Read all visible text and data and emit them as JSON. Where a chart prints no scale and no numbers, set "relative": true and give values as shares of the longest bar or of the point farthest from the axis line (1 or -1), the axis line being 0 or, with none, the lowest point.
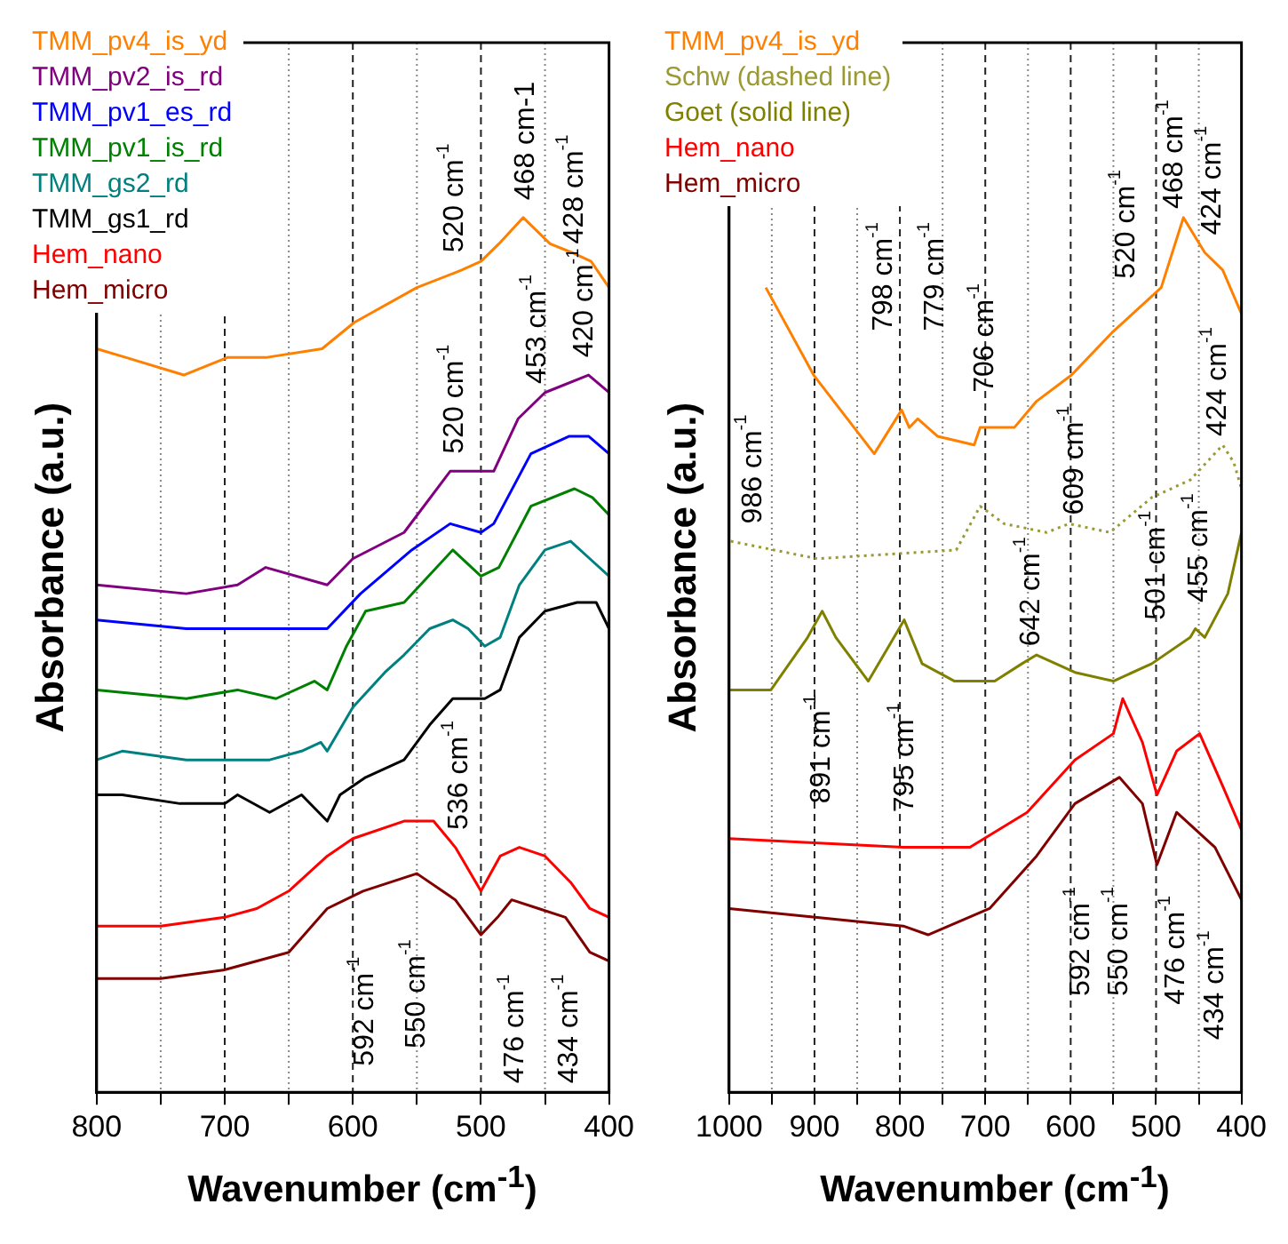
{
  "chart_data": [
    {
      "type": "line",
      "relative": true,
      "xlabel": "Wavenumber (cm$^{-1}$)",
      "ylabel": "Absorbance (a.u.)",
      "xlim": [
        800,
        400
      ],
      "xticks": [
        800,
        {
          "value": 750,
          "label": null
        },
        700,
        {
          "value": 650,
          "label": null
        },
        600,
        {
          "value": 550,
          "label": null
        },
        500,
        {
          "value": 450,
          "label": null
        },
        400
      ],
      "grid": "x",
      "legend": "top left",
      "series": [
        {
          "name": "TMM_pv4_is_yd",
          "color": "#ff8000",
          "x": [
            800,
            777,
            732,
            698,
            668,
            624,
            599,
            550,
            515,
            500,
            486,
            467,
            446,
            429,
            414,
            400
          ],
          "values": [
            0.85,
            0.84,
            0.82,
            0.84,
            0.84,
            0.85,
            0.88,
            0.92,
            0.94,
            0.95,
            0.97,
            1.0,
            0.97,
            0.96,
            0.95,
            0.92
          ]
        },
        {
          "name": "TMM_pv2_is_rd",
          "color": "#800080",
          "x": [
            800,
            730,
            690,
            668,
            620,
            600,
            560,
            524,
            500,
            490,
            471,
            450,
            416,
            400
          ],
          "values": [
            0.58,
            0.57,
            0.58,
            0.6,
            0.58,
            0.61,
            0.64,
            0.71,
            0.71,
            0.71,
            0.77,
            0.8,
            0.82,
            0.8
          ]
        },
        {
          "name": "TMM_pv1_es_rd",
          "color": "#0000ff",
          "x": [
            800,
            730,
            690,
            640,
            620,
            594,
            554,
            524,
            500,
            490,
            461,
            431,
            416,
            400
          ],
          "values": [
            0.54,
            0.53,
            0.53,
            0.53,
            0.53,
            0.57,
            0.62,
            0.65,
            0.64,
            0.65,
            0.73,
            0.75,
            0.75,
            0.73
          ]
        },
        {
          "name": "TMM_pv1_is_rd",
          "color": "#008000",
          "x": [
            800,
            730,
            690,
            660,
            630,
            620,
            605,
            590,
            560,
            522,
            500,
            486,
            461,
            427,
            413,
            400
          ],
          "values": [
            0.46,
            0.45,
            0.46,
            0.45,
            0.47,
            0.46,
            0.51,
            0.55,
            0.56,
            0.62,
            0.59,
            0.6,
            0.67,
            0.69,
            0.68,
            0.66
          ]
        },
        {
          "name": "TMM_gs2_rd",
          "color": "#008080",
          "x": [
            800,
            780,
            730,
            690,
            665,
            640,
            625,
            620,
            600,
            575,
            560,
            540,
            522,
            510,
            497,
            485,
            470,
            450,
            430,
            415,
            400
          ],
          "values": [
            0.38,
            0.39,
            0.38,
            0.38,
            0.38,
            0.39,
            0.4,
            0.39,
            0.44,
            0.48,
            0.5,
            0.53,
            0.54,
            0.53,
            0.51,
            0.52,
            0.58,
            0.62,
            0.63,
            0.61,
            0.59
          ]
        },
        {
          "name": "TMM_gs1_rd",
          "color": "#000000",
          "x": [
            800,
            780,
            735,
            700,
            690,
            665,
            640,
            620,
            610,
            590,
            560,
            540,
            522,
            505,
            497,
            485,
            470,
            450,
            425,
            410,
            400
          ],
          "values": [
            0.34,
            0.34,
            0.33,
            0.33,
            0.34,
            0.32,
            0.34,
            0.31,
            0.34,
            0.36,
            0.38,
            0.42,
            0.45,
            0.45,
            0.45,
            0.46,
            0.52,
            0.55,
            0.56,
            0.56,
            0.53
          ]
        },
        {
          "name": "Hem_nano",
          "color": "#ff0000",
          "x": [
            800,
            750,
            700,
            675,
            650,
            620,
            600,
            560,
            537,
            520,
            500,
            485,
            470,
            450,
            430,
            415,
            400
          ],
          "values": [
            0.19,
            0.19,
            0.2,
            0.21,
            0.23,
            0.27,
            0.29,
            0.31,
            0.31,
            0.28,
            0.23,
            0.27,
            0.28,
            0.27,
            0.24,
            0.21,
            0.2
          ]
        },
        {
          "name": "Hem_micro",
          "color": "#800000",
          "x": [
            800,
            750,
            700,
            650,
            620,
            592,
            550,
            520,
            500,
            487,
            476,
            455,
            434,
            415,
            400
          ],
          "values": [
            0.13,
            0.13,
            0.14,
            0.16,
            0.21,
            0.23,
            0.25,
            0.22,
            0.18,
            0.2,
            0.22,
            0.21,
            0.2,
            0.16,
            0.15
          ]
        }
      ],
      "annotations": [
        "520 cm$^{-1}$",
        "468 cm-1",
        "428 cm$^{-1}$",
        "520 cm$^{-1}$",
        "453 cm$^{-1}$",
        "420 cm$^{-1}$",
        "536 cm$^{-1}$",
        "592 cm$^{-1}$",
        "550 cm$^{-1}$",
        "476 cm$^{-1}$",
        "434 cm$^{-1}$"
      ]
    },
    {
      "type": "line",
      "relative": true,
      "xlabel": "Wavenumber (cm$^{-1}$)",
      "ylabel": "Absorbance (a.u.)",
      "xlim": [
        1000,
        400
      ],
      "xticks": [
        1000,
        {
          "value": 950,
          "label": null
        },
        900,
        {
          "value": 850,
          "label": null
        },
        800,
        {
          "value": 750,
          "label": null
        },
        700,
        {
          "value": 650,
          "label": null
        },
        600,
        {
          "value": 550,
          "label": null
        },
        500,
        {
          "value": 450,
          "label": null
        },
        400
      ],
      "grid": "x",
      "legend": "top left",
      "series": [
        {
          "name": "TMM_pv4_is_yd",
          "color": "#ff8000",
          "x": [
            957,
            901,
            830,
            798,
            789,
            779,
            756,
            713,
            706,
            666,
            640,
            599,
            550,
            505,
            494,
            468,
            443,
            422,
            400
          ],
          "values": [
            0.92,
            0.82,
            0.73,
            0.78,
            0.76,
            0.77,
            0.75,
            0.74,
            0.76,
            0.76,
            0.79,
            0.82,
            0.87,
            0.91,
            0.92,
            1.0,
            0.96,
            0.94,
            0.89
          ]
        },
        {
          "name": "Schw (dashed line)",
          "color": "#9a9a33",
          "line_style": "dotted",
          "x": [
            998,
            897,
            734,
            706,
            678,
            628,
            602,
            554,
            505,
            460,
            422,
            409,
            400
          ],
          "values": [
            0.63,
            0.61,
            0.62,
            0.67,
            0.65,
            0.64,
            0.65,
            0.64,
            0.68,
            0.7,
            0.74,
            0.72,
            0.69
          ]
        },
        {
          "name": "Goet (solid line)",
          "color": "#808000",
          "x": [
            1000,
            951,
            908,
            891,
            875,
            837,
            795,
            774,
            736,
            689,
            657,
            640,
            595,
            550,
            505,
            460,
            454,
            443,
            416,
            400
          ],
          "values": [
            0.46,
            0.46,
            0.52,
            0.55,
            0.52,
            0.47,
            0.54,
            0.49,
            0.47,
            0.47,
            0.49,
            0.5,
            0.48,
            0.47,
            0.49,
            0.52,
            0.53,
            0.52,
            0.57,
            0.64
          ]
        },
        {
          "name": "Hem_nano",
          "color": "#ff0000",
          "x": [
            1000,
            796,
            718,
            651,
            595,
            550,
            539,
            516,
            499,
            476,
            449,
            422,
            400
          ],
          "values": [
            0.29,
            0.28,
            0.28,
            0.32,
            0.38,
            0.41,
            0.45,
            0.4,
            0.34,
            0.39,
            0.41,
            0.35,
            0.3
          ]
        },
        {
          "name": "Hem_micro",
          "color": "#800000",
          "x": [
            1000,
            796,
            767,
            695,
            640,
            595,
            543,
            516,
            499,
            476,
            431,
            400
          ],
          "values": [
            0.21,
            0.19,
            0.18,
            0.21,
            0.27,
            0.33,
            0.36,
            0.33,
            0.26,
            0.32,
            0.28,
            0.22
          ]
        }
      ],
      "annotations": [
        "986 cm$^{-1}$",
        "798 cm$^{-1}$",
        "779 cm$^{-1}$",
        "706 cm$^{-1}$",
        "609 cm$^{-1}$",
        "520 cm$^{-1}$",
        "468 cm$^{-1}$",
        "424 cm$^{-1}$",
        "424 cm$^{-1}$",
        "642 cm$^{-1}$",
        "501 cm$^{-1}$",
        "455 cm$^{-1}$",
        "891 cm$^{-1}$",
        "795 cm$^{-1}$",
        "592 cm$^{-1}$",
        "550 cm$^{-1}$",
        "476 cm$^{-1}$",
        "434 cm$^{-1}$"
      ]
    }
  ]
}
